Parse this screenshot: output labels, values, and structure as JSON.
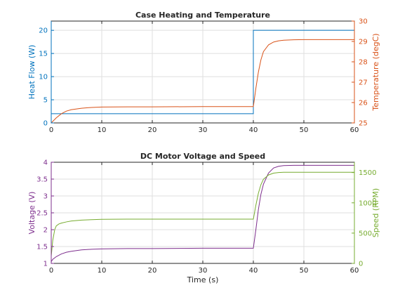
{
  "chart_data": [
    {
      "type": "line",
      "title": "Case Heating and Temperature",
      "xlabel": "",
      "xlim": [
        0,
        60
      ],
      "xticks": [
        0,
        10,
        20,
        30,
        40,
        50,
        60
      ],
      "grid": true,
      "left_axis": {
        "ylabel": "Heat Flow (W)",
        "ylim": [
          0,
          22
        ],
        "yticks": [
          0,
          5,
          10,
          15,
          20
        ],
        "color": "#0072bd"
      },
      "right_axis": {
        "ylabel": "Temperature (degC)",
        "ylim": [
          25,
          30
        ],
        "yticks": [
          25,
          26,
          27,
          28,
          29,
          30
        ],
        "color": "#d95319"
      },
      "series": [
        {
          "axis": "left",
          "color": "#0072bd",
          "x": [
            0,
            40,
            40,
            60
          ],
          "y": [
            2,
            2,
            20,
            20
          ]
        },
        {
          "axis": "right",
          "color": "#d95319",
          "x": [
            0,
            1,
            2,
            3,
            4,
            6,
            8,
            10,
            15,
            20,
            30,
            40,
            40.5,
            41,
            41.5,
            42,
            43,
            44,
            45,
            46,
            48,
            50,
            55,
            60
          ],
          "y": [
            25.0,
            25.25,
            25.45,
            25.58,
            25.65,
            25.72,
            25.76,
            25.78,
            25.79,
            25.79,
            25.8,
            25.8,
            26.7,
            27.5,
            28.1,
            28.5,
            28.83,
            28.97,
            29.03,
            29.06,
            29.08,
            29.09,
            29.09,
            29.09
          ]
        }
      ]
    },
    {
      "type": "line",
      "title": "DC Motor Voltage and Speed",
      "xlabel": "Time (s)",
      "xlim": [
        0,
        60
      ],
      "xticks": [
        0,
        10,
        20,
        30,
        40,
        50,
        60
      ],
      "grid": true,
      "left_axis": {
        "ylabel": "Voltage (V)",
        "ylim": [
          1,
          4
        ],
        "yticks": [
          1,
          1.5,
          2,
          2.5,
          3,
          3.5,
          4
        ],
        "color": "#7e2f8e"
      },
      "right_axis": {
        "ylabel": "Speed (RPM)",
        "ylim": [
          0,
          1670
        ],
        "yticks": [
          0,
          500,
          1000,
          1500
        ],
        "color": "#77ac30"
      },
      "series": [
        {
          "axis": "left",
          "color": "#7e2f8e",
          "x": [
            0,
            0.3,
            1,
            2,
            3,
            4,
            6,
            8,
            10,
            15,
            20,
            30,
            40,
            40.5,
            41,
            41.5,
            42,
            43,
            44,
            45,
            46,
            48,
            50,
            55,
            60
          ],
          "y": [
            1.05,
            1.12,
            1.2,
            1.28,
            1.33,
            1.36,
            1.4,
            1.42,
            1.43,
            1.44,
            1.44,
            1.45,
            1.45,
            2.0,
            2.6,
            3.05,
            3.35,
            3.68,
            3.83,
            3.88,
            3.9,
            3.91,
            3.91,
            3.91,
            3.91
          ]
        },
        {
          "axis": "right",
          "color": "#77ac30",
          "x": [
            0,
            0.3,
            0.7,
            1,
            1.5,
            2,
            3,
            4,
            6,
            8,
            10,
            15,
            20,
            30,
            40,
            40.5,
            41,
            41.5,
            42,
            43,
            44,
            45,
            46,
            48,
            50,
            55,
            60
          ],
          "y": [
            120,
            380,
            560,
            620,
            650,
            665,
            685,
            700,
            715,
            722,
            728,
            730,
            730,
            730,
            730,
            960,
            1160,
            1300,
            1390,
            1460,
            1490,
            1500,
            1505,
            1505,
            1505,
            1505,
            1505
          ]
        }
      ]
    }
  ]
}
